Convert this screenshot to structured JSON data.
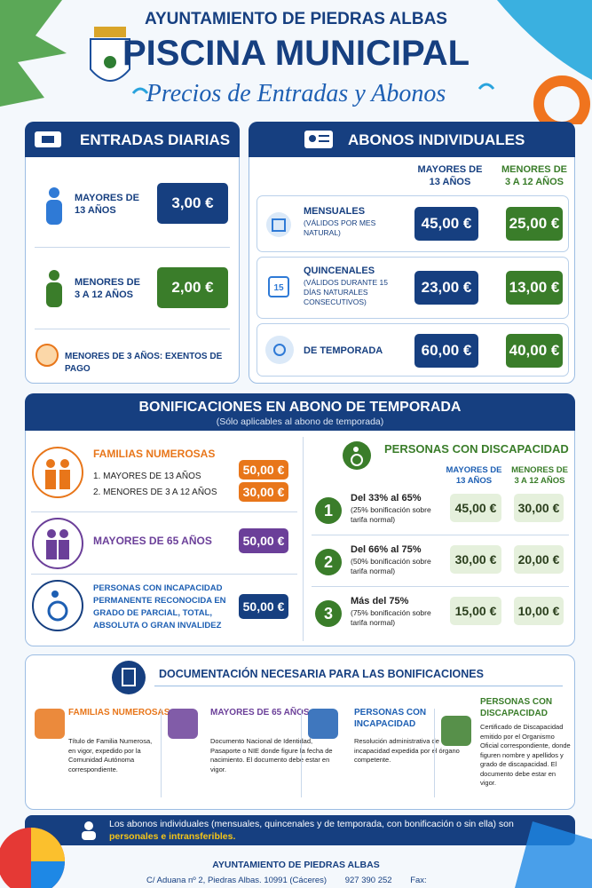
{
  "header": {
    "org": "AYUNTAMIENTO DE PIEDRAS ALBAS",
    "title": "PISCINA MUNICIPAL",
    "subtitle": "Precios de Entradas y Abonos"
  },
  "daily": {
    "title": "ENTRADAS DIARIAS",
    "rows": [
      {
        "label": "MAYORES DE 13 AÑOS",
        "price": "3,00 €"
      },
      {
        "label": "MENORES DE 3 A 12 AÑOS",
        "price": "2,00 €"
      }
    ],
    "note": "MENORES DE 3 AÑOS: EXENTOS DE PAGO"
  },
  "passes": {
    "title": "ABONOS INDIVIDUALES",
    "columns": [
      "MAYORES DE 13 AÑOS",
      "MENORES DE 3 A 12 AÑOS"
    ],
    "rows": [
      {
        "label": "MENSUALES",
        "detail": "(VÁLIDOS POR MES NATURAL)",
        "prices": [
          "45,00 €",
          "25,00 €"
        ]
      },
      {
        "label": "QUINCENALES",
        "detail": "(VÁLIDOS DURANTE 15 DÍAS NATURALES CONSECUTIVOS)",
        "icon_text": "15",
        "prices": [
          "23,00 €",
          "13,00 €"
        ]
      },
      {
        "label": "DE TEMPORADA",
        "prices": [
          "60,00 €",
          "40,00 €"
        ]
      }
    ]
  },
  "bonuses": {
    "title": "BONIFICACIONES EN ABONO DE TEMPORADA",
    "subtitle": "(Sólo aplicables al abono de temporada)",
    "groups": [
      {
        "title": "FAMILIAS NUMEROSAS",
        "items": [
          {
            "label": "1. MAYORES DE 13 AÑOS",
            "price": "50,00 €"
          },
          {
            "label": "2. MENORES DE 3 A 12 AÑOS",
            "price": "30,00 €"
          }
        ]
      },
      {
        "title": "MAYORES DE 65 AÑOS",
        "price": "50,00 €"
      },
      {
        "title": "PERSONAS CON INCAPACIDAD PERMANENTE RECONOCIDA EN GRADO DE PARCIAL, TOTAL, ABSOLUTA O GRAN INVALIDEZ",
        "price": "50,00 €"
      }
    ],
    "disability": {
      "title": "PERSONAS CON DISCAPACIDAD",
      "columns": [
        "MAYORES DE 13 AÑOS",
        "MENORES DE 3 A 12 AÑOS"
      ],
      "rows": [
        {
          "number": "1",
          "range": "Del 33% al 65%",
          "detail": "(25% bonificación sobre tarifa normal)",
          "prices": [
            "45,00 €",
            "30,00 €"
          ]
        },
        {
          "number": "2",
          "range": "Del 66% al 75%",
          "detail": "(50% bonificación sobre tarifa normal)",
          "prices": [
            "30,00 €",
            "20,00 €"
          ]
        },
        {
          "number": "3",
          "range": "Más del 75%",
          "detail": "(75% bonificación sobre tarifa normal)",
          "prices": [
            "15,00 €",
            "10,00 €"
          ]
        }
      ]
    }
  },
  "docs": {
    "title": "DOCUMENTACIÓN NECESARIA PARA LAS BONIFICACIONES",
    "items": [
      {
        "title": "FAMILIAS NUMEROSAS",
        "text": "Título de Familia Numerosa, en vigor, expedido por la Comunidad Autónoma correspondiente."
      },
      {
        "title": "MAYORES DE 65 AÑOS",
        "text": "Documento Nacional de Identidad, Pasaporte o NIE donde figure la fecha de nacimiento. El documento debe estar en vigor."
      },
      {
        "title": "PERSONAS CON INCAPACIDAD",
        "text": "Resolución administrativa de incapacidad expedida por el órgano competente."
      },
      {
        "title": "PERSONAS CON DISCAPACIDAD",
        "text": "Certificado de Discapacidad emitido por el Organismo Oficial correspondiente, donde figuren nombre y apellidos y grado de discapacidad. El documento debe estar en vigor."
      }
    ]
  },
  "notice": {
    "text": "Los abonos individuales (mensuales, quincenales y de temporada, con bonificación o sin ella) son ",
    "highlight": "personales e intransferibles."
  },
  "footer": {
    "org": "AYUNTAMIENTO DE PIEDRAS ALBAS",
    "address": "C/ Aduana nº 2, Piedras Albas. 10991 (Cáceres)",
    "phone": "927 390 252",
    "fax": "Fax:"
  }
}
